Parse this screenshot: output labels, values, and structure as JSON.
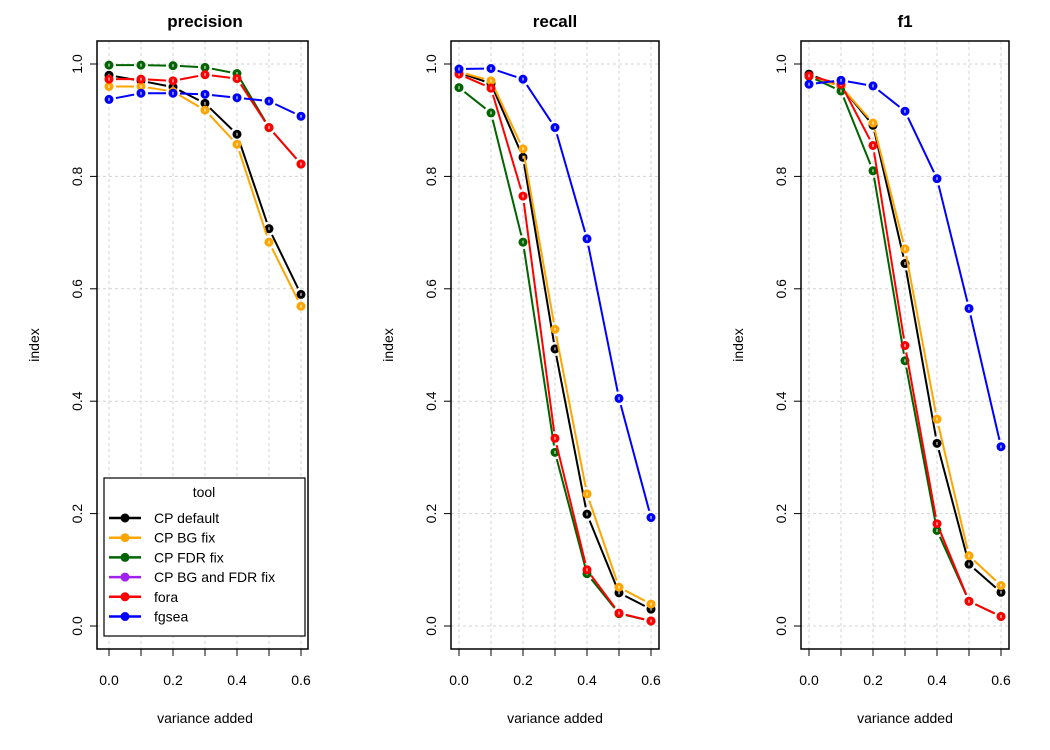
{
  "chart_data": {
    "type": "line",
    "legend": {
      "title": "tool",
      "placement": "bottom-left of first panel",
      "entries": [
        {
          "name": "CP default",
          "color": "#000000"
        },
        {
          "name": "CP BG fix",
          "color": "#FFA500"
        },
        {
          "name": "CP FDR fix",
          "color": "#006400"
        },
        {
          "name": "CP BG and FDR fix",
          "color": "#A020F0"
        },
        {
          "name": "fora",
          "color": "#FF0000"
        },
        {
          "name": "fgsea",
          "color": "#0000FF"
        }
      ]
    },
    "x": [
      0.0,
      0.1,
      0.2,
      0.3,
      0.4,
      0.5,
      0.6
    ],
    "xlabel": "variance added",
    "ylabel": "index",
    "xlim": [
      0,
      0.6
    ],
    "ylim": [
      0,
      1
    ],
    "xticks": [
      "0.0",
      "0.2",
      "0.4",
      "0.6"
    ],
    "yticks": [
      "0.0",
      "0.2",
      "0.4",
      "0.6",
      "0.8",
      "1.0"
    ],
    "grid": true,
    "panels": [
      {
        "title": "precision",
        "series": [
          {
            "name": "CP default",
            "values": [
              0.98,
              0.97,
              0.959,
              0.93,
              0.875,
              0.707,
              0.59
            ]
          },
          {
            "name": "CP BG fix",
            "values": [
              0.96,
              0.96,
              0.951,
              0.918,
              0.857,
              0.683,
              0.569
            ]
          },
          {
            "name": "CP FDR fix",
            "values": [
              0.998,
              0.998,
              0.997,
              0.994,
              0.983,
              0.887,
              0.822
            ]
          },
          {
            "name": "fora",
            "values": [
              0.973,
              0.973,
              0.97,
              0.981,
              0.974,
              0.887,
              0.822
            ]
          },
          {
            "name": "fgsea",
            "values": [
              0.937,
              0.948,
              0.948,
              0.946,
              0.94,
              0.934,
              0.907
            ]
          }
        ]
      },
      {
        "title": "recall",
        "series": [
          {
            "name": "CP default",
            "values": [
              0.985,
              0.965,
              0.834,
              0.493,
              0.199,
              0.059,
              0.03
            ]
          },
          {
            "name": "CP BG fix",
            "values": [
              0.986,
              0.97,
              0.849,
              0.528,
              0.235,
              0.069,
              0.039
            ]
          },
          {
            "name": "CP FDR fix",
            "values": [
              0.958,
              0.913,
              0.683,
              0.309,
              0.093,
              0.022,
              0.009
            ]
          },
          {
            "name": "fora",
            "values": [
              0.982,
              0.957,
              0.765,
              0.334,
              0.1,
              0.023,
              0.009
            ]
          },
          {
            "name": "fgsea",
            "values": [
              0.991,
              0.992,
              0.973,
              0.887,
              0.689,
              0.405,
              0.193
            ]
          }
        ]
      },
      {
        "title": "f1",
        "series": [
          {
            "name": "CP default",
            "values": [
              0.982,
              0.96,
              0.891,
              0.645,
              0.325,
              0.11,
              0.06
            ]
          },
          {
            "name": "CP BG fix",
            "values": [
              0.978,
              0.96,
              0.895,
              0.671,
              0.368,
              0.125,
              0.072
            ]
          },
          {
            "name": "CP FDR fix",
            "values": [
              0.978,
              0.952,
              0.81,
              0.472,
              0.17,
              0.044,
              0.017
            ]
          },
          {
            "name": "fora",
            "values": [
              0.979,
              0.964,
              0.855,
              0.499,
              0.182,
              0.044,
              0.017
            ]
          },
          {
            "name": "fgsea",
            "values": [
              0.964,
              0.971,
              0.961,
              0.916,
              0.796,
              0.565,
              0.319
            ]
          }
        ]
      }
    ]
  }
}
